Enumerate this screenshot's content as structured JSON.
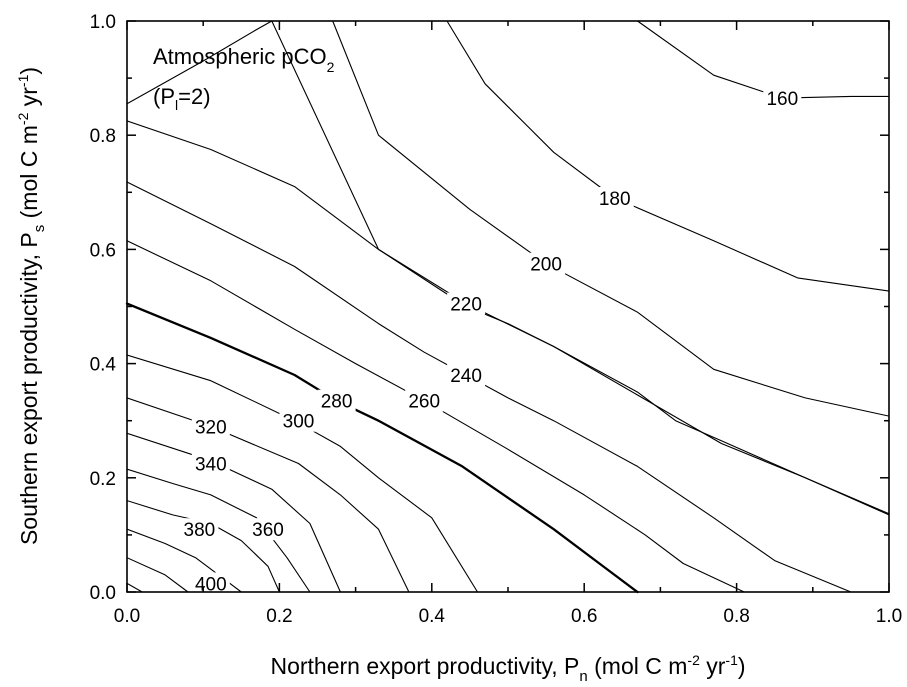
{
  "chart_data": {
    "type": "contour",
    "title": "Atmospheric pCO",
    "title_sub": "2",
    "subtitle_prefix": "(P",
    "subtitle_sub": "l",
    "subtitle_suffix": "=2)",
    "xlabel_main": "Northern export productivity, P",
    "xlabel_sub": "n",
    "xlabel_unit_prefix": " (mol C m",
    "xlabel_unit_exp1": "-2",
    "xlabel_unit_mid": " yr",
    "xlabel_unit_exp2": "-1",
    "xlabel_unit_suffix": ")",
    "ylabel_main": "Southern export productivity, P",
    "ylabel_sub": "s",
    "ylabel_unit_prefix": " (mol C m",
    "ylabel_unit_exp1": "-2",
    "ylabel_unit_mid": " yr",
    "ylabel_unit_exp2": "-1",
    "ylabel_unit_suffix": ")",
    "xlim": [
      0,
      1
    ],
    "ylim": [
      0,
      1
    ],
    "xticks": [
      "0.0",
      "0.2",
      "0.4",
      "0.6",
      "0.8",
      "1.0"
    ],
    "yticks": [
      "0.0",
      "0.2",
      "0.4",
      "0.6",
      "0.8",
      "1.0"
    ],
    "highlight_color": "#e00000",
    "line_color": "#000000",
    "contours": [
      {
        "level": 160,
        "label": "160",
        "label_at": [
          0.86,
          0.865
        ],
        "points": [
          [
            0.67,
            1.0
          ],
          [
            0.77,
            0.905
          ],
          [
            0.86,
            0.865
          ],
          [
            0.95,
            0.868
          ],
          [
            1.0,
            0.868
          ]
        ]
      },
      {
        "level": 180,
        "label": "180",
        "label_at": [
          0.64,
          0.69
        ],
        "points": [
          [
            0.42,
            1.0
          ],
          [
            0.47,
            0.89
          ],
          [
            0.56,
            0.77
          ],
          [
            0.64,
            0.69
          ],
          [
            0.77,
            0.615
          ],
          [
            0.88,
            0.55
          ],
          [
            1.0,
            0.527
          ]
        ]
      },
      {
        "level": 200,
        "label": "200",
        "label_at": [
          0.55,
          0.575
        ],
        "points": [
          [
            0.27,
            1.0
          ],
          [
            0.33,
            0.8
          ],
          [
            0.45,
            0.67
          ],
          [
            0.55,
            0.575
          ],
          [
            0.67,
            0.49
          ],
          [
            0.77,
            0.39
          ],
          [
            0.89,
            0.34
          ],
          [
            1.0,
            0.308
          ]
        ]
      },
      {
        "level": 220,
        "label": "220",
        "label_at": [
          0.445,
          0.505
        ],
        "points": [
          [
            0.0,
            0.855
          ],
          [
            0.1,
            0.93
          ],
          [
            0.17,
            0.985
          ],
          [
            0.19,
            1.0
          ],
          [
            0.33,
            0.6
          ],
          [
            0.445,
            0.505
          ],
          [
            0.56,
            0.43
          ],
          [
            0.67,
            0.345
          ],
          [
            0.78,
            0.26
          ],
          [
            0.89,
            0.2
          ],
          [
            1.0,
            0.135
          ]
        ]
      },
      {
        "level": 240,
        "label": "240",
        "label_at": [
          0.445,
          0.38
        ],
        "points": [
          [
            0.0,
            0.825
          ],
          [
            0.11,
            0.775
          ],
          [
            0.22,
            0.71
          ],
          [
            0.33,
            0.6
          ],
          [
            0.445,
            0.5
          ],
          [
            0.5,
            0.47
          ],
          [
            0.56,
            0.43
          ],
          [
            0.67,
            0.35
          ],
          [
            0.72,
            0.3
          ],
          [
            0.78,
            0.265
          ],
          [
            0.89,
            0.2
          ],
          [
            1.0,
            0.137
          ]
        ]
      },
      {
        "level": 260,
        "label": "260",
        "label_at": [
          0.39,
          0.335
        ],
        "points": [
          [
            0.0,
            0.718
          ],
          [
            0.11,
            0.645
          ],
          [
            0.22,
            0.57
          ],
          [
            0.33,
            0.47
          ],
          [
            0.39,
            0.42
          ],
          [
            0.445,
            0.38
          ],
          [
            0.5,
            0.34
          ],
          [
            0.56,
            0.3
          ],
          [
            0.67,
            0.22
          ],
          [
            0.77,
            0.13
          ],
          [
            0.85,
            0.055
          ],
          [
            0.95,
            0.0
          ]
        ]
      },
      {
        "level": 270,
        "label": "",
        "points": [
          [
            0.0,
            0.615
          ],
          [
            0.11,
            0.545
          ],
          [
            0.22,
            0.46
          ],
          [
            0.3,
            0.4
          ],
          [
            0.39,
            0.335
          ],
          [
            0.5,
            0.25
          ],
          [
            0.6,
            0.17
          ],
          [
            0.68,
            0.1
          ],
          [
            0.73,
            0.05
          ],
          [
            0.81,
            0.0
          ]
        ]
      },
      {
        "level": 280,
        "label": "280",
        "label_at": [
          0.275,
          0.335
        ],
        "highlight": true,
        "points": [
          [
            0.0,
            0.505
          ],
          [
            0.11,
            0.445
          ],
          [
            0.22,
            0.38
          ],
          [
            0.275,
            0.335
          ],
          [
            0.33,
            0.3
          ],
          [
            0.44,
            0.22
          ],
          [
            0.5,
            0.165
          ],
          [
            0.56,
            0.11
          ],
          [
            0.62,
            0.05
          ],
          [
            0.67,
            0.0
          ]
        ]
      },
      {
        "level": 290,
        "label": "",
        "points": [
          [
            0.0,
            0.415
          ],
          [
            0.11,
            0.37
          ],
          [
            0.22,
            0.3
          ],
          [
            0.28,
            0.255
          ],
          [
            0.33,
            0.2
          ],
          [
            0.4,
            0.13
          ],
          [
            0.46,
            0.0
          ]
        ]
      },
      {
        "level": 300,
        "label": "300",
        "label_at": [
          0.225,
          0.3
        ],
        "points": [
          [
            0.0,
            0.34
          ],
          [
            0.11,
            0.29
          ],
          [
            0.225,
            0.225
          ],
          [
            0.28,
            0.17
          ],
          [
            0.33,
            0.11
          ],
          [
            0.37,
            0.0
          ]
        ]
      },
      {
        "level": 320,
        "label": "320",
        "label_at": [
          0.11,
          0.29
        ],
        "points": [
          [
            0.0,
            0.278
          ],
          [
            0.11,
            0.23
          ],
          [
            0.19,
            0.18
          ],
          [
            0.24,
            0.12
          ],
          [
            0.28,
            0.0
          ]
        ]
      },
      {
        "level": 340,
        "label": "340",
        "label_at": [
          0.11,
          0.225
        ],
        "points": [
          [
            0.0,
            0.215
          ],
          [
            0.06,
            0.19
          ],
          [
            0.11,
            0.17
          ],
          [
            0.17,
            0.13
          ],
          [
            0.21,
            0.06
          ],
          [
            0.24,
            0.0
          ]
        ]
      },
      {
        "level": 360,
        "label": "360",
        "label_at": [
          0.185,
          0.11
        ],
        "points": [
          [
            0.0,
            0.16
          ],
          [
            0.06,
            0.135
          ],
          [
            0.11,
            0.12
          ],
          [
            0.15,
            0.09
          ],
          [
            0.185,
            0.045
          ],
          [
            0.2,
            0.0
          ]
        ]
      },
      {
        "level": 380,
        "label": "380",
        "label_at": [
          0.095,
          0.11
        ],
        "points": [
          [
            0.0,
            0.11
          ],
          [
            0.05,
            0.085
          ],
          [
            0.09,
            0.06
          ],
          [
            0.13,
            0.02
          ],
          [
            0.15,
            0.0
          ]
        ]
      },
      {
        "level": 390,
        "label": "",
        "points": [
          [
            0.0,
            0.06
          ],
          [
            0.05,
            0.03
          ],
          [
            0.08,
            0.0
          ]
        ]
      },
      {
        "level": 400,
        "label": "400",
        "label_at": [
          0.11,
          0.015
        ],
        "points": [
          [
            0.0,
            0.015
          ],
          [
            0.02,
            0.0
          ]
        ]
      }
    ]
  }
}
